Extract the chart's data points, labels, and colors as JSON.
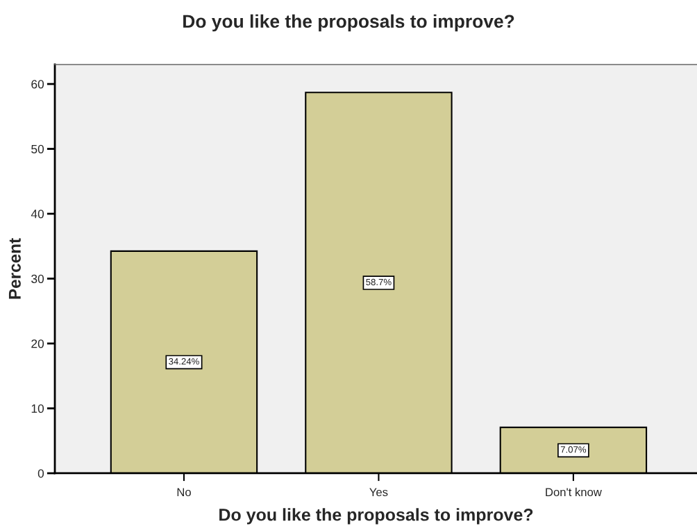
{
  "chart_data": {
    "type": "bar",
    "title": "Do you like the proposals to improve?",
    "xlabel": "Do you like the proposals to improve?",
    "ylabel": "Percent",
    "categories": [
      "No",
      "Yes",
      "Don't know"
    ],
    "values": [
      34.24,
      58.7,
      7.07
    ],
    "color": "#d3ce97",
    "value_labels": [
      "34.24%",
      "58.7%",
      "7.07%"
    ],
    "ylim": [
      0,
      63
    ],
    "yticks": [
      0,
      10,
      20,
      30,
      40,
      50,
      60
    ],
    "grid": false,
    "legend": false
  }
}
